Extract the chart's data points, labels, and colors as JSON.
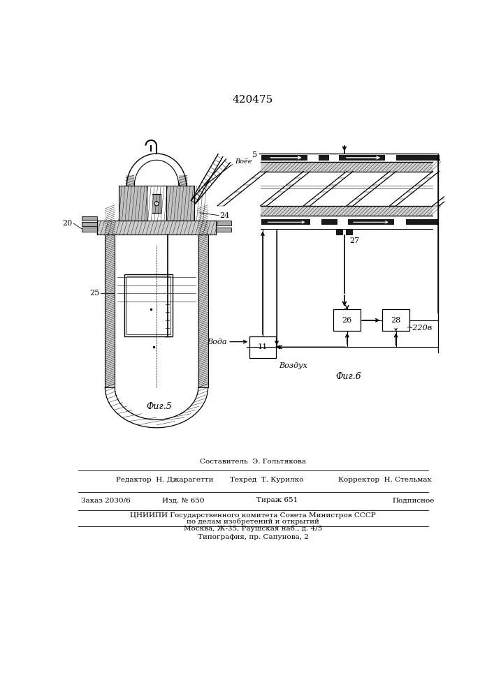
{
  "title": "420475",
  "fig5_label": "Фиг.5",
  "fig6_label": "Фиг.6",
  "label_20": "20",
  "label_24": "24",
  "label_25": "25",
  "label_5": "5",
  "label_27": "27",
  "label_26": "26",
  "label_28": "28",
  "label_11": "11",
  "label_voda": "Вода",
  "label_vozdukh": "Воздух",
  "label_220v": "~220в",
  "label_boe": "Воёе",
  "footer_line1": "Составитель  Э. Гольтякова",
  "footer_line2_left": "Редактор  Н. Джарагетти",
  "footer_line2_mid": "Техред  Т. Курилко",
  "footer_line2_right": "Корректор  Н. Стельмах",
  "footer_line3_left": "Заказ 2030/6",
  "footer_line3_mid1": "Изд. № 650",
  "footer_line3_mid2": "Тираж 651",
  "footer_line3_right": "Подписное",
  "footer_line4": "ЦНИИПИ Государственного комитета Совета Министров СССР",
  "footer_line5": "по делам изобретений и открытий",
  "footer_line6": "Москва, Ж-35, Раушская наб., д. 4/5",
  "footer_line7": "Типография, пр. Сапунова, 2",
  "bg_color": "#ffffff"
}
